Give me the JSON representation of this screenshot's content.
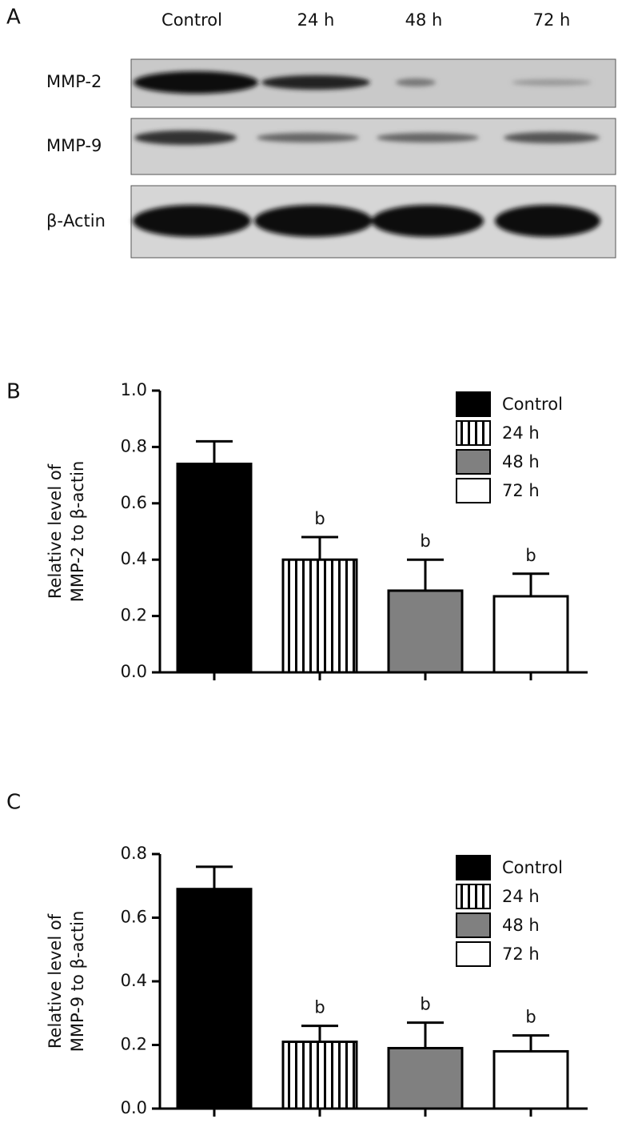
{
  "blot": {
    "panel": "A",
    "lanes": [
      "Control",
      "24 h",
      "48 h",
      "72 h"
    ],
    "rows": [
      "MMP-2",
      "MMP-9",
      "β-Actin"
    ]
  },
  "chart_data": [
    {
      "type": "bar",
      "panel": "B",
      "ylabel": [
        "Relative level of",
        "MMP-2 to β-actin"
      ],
      "categories": [
        "Control",
        "24 h",
        "48 h",
        "72 h"
      ],
      "values": [
        0.74,
        0.4,
        0.29,
        0.27
      ],
      "errors": [
        0.08,
        0.08,
        0.11,
        0.08
      ],
      "annotations": [
        null,
        "b",
        "b",
        "b"
      ],
      "colors": [
        "#000000",
        "#ffffff",
        "#808080",
        "#ffffff"
      ],
      "hatch": [
        false,
        true,
        false,
        false
      ],
      "ylim": [
        0,
        1.0
      ],
      "yticks": [
        {
          "value": 0,
          "label": "0.0"
        },
        0.2,
        0.4,
        0.6,
        0.8,
        {
          "value": 1.0,
          "label": "1.0"
        }
      ],
      "legend": "top-right"
    },
    {
      "type": "bar",
      "panel": "C",
      "ylabel": [
        "Relative level of",
        "MMP-9 to β-actin"
      ],
      "categories": [
        "Control",
        "24 h",
        "48 h",
        "72 h"
      ],
      "values": [
        0.69,
        0.21,
        0.19,
        0.18
      ],
      "errors": [
        0.07,
        0.05,
        0.08,
        0.05
      ],
      "annotations": [
        null,
        "b",
        "b",
        "b"
      ],
      "colors": [
        "#000000",
        "#ffffff",
        "#808080",
        "#ffffff"
      ],
      "hatch": [
        false,
        true,
        false,
        false
      ],
      "ylim": [
        0,
        0.8
      ],
      "yticks": [
        {
          "value": 0,
          "label": "0.0"
        },
        0.2,
        0.4,
        0.6,
        0.8
      ],
      "legend": "top-right"
    }
  ]
}
